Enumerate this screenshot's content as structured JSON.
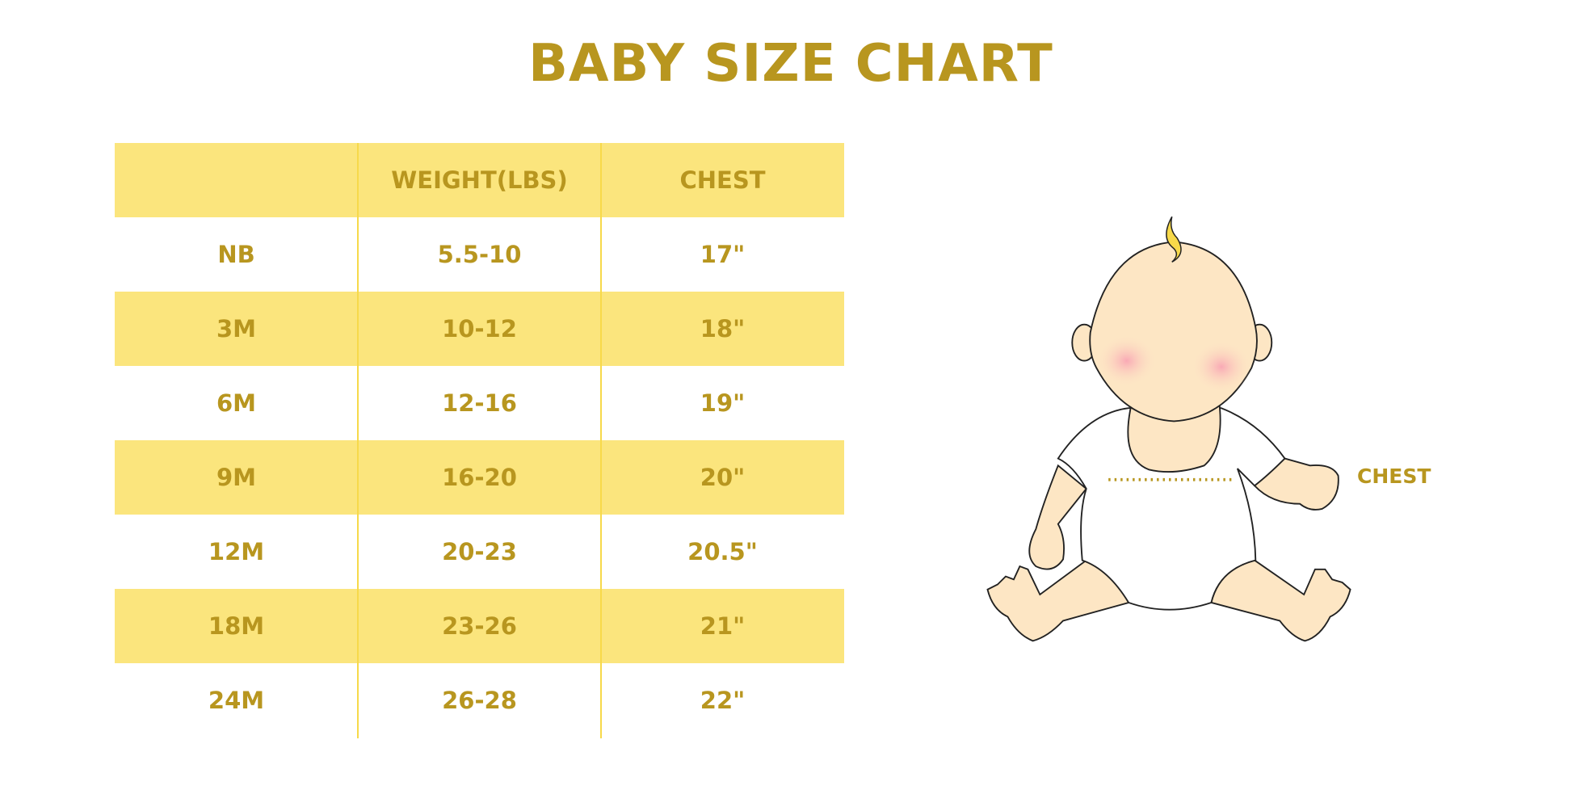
{
  "title": "BABY SIZE CHART",
  "table": {
    "headers": [
      "",
      "WEIGHT(LBS)",
      "CHEST"
    ],
    "rows": [
      [
        "NB",
        "5.5-10",
        "17\""
      ],
      [
        "3M",
        "10-12",
        "18\""
      ],
      [
        "6M",
        "12-16",
        "19\""
      ],
      [
        "9M",
        "16-20",
        "20\""
      ],
      [
        "12M",
        "20-23",
        "20.5\""
      ],
      [
        "18M",
        "23-26",
        "21\""
      ],
      [
        "24M",
        "26-28",
        "22\""
      ]
    ]
  },
  "illustration": {
    "chest_label": "CHEST"
  },
  "colors": {
    "text": "#b8961f",
    "band": "#fbe57d",
    "divider": "#f7d94a"
  }
}
